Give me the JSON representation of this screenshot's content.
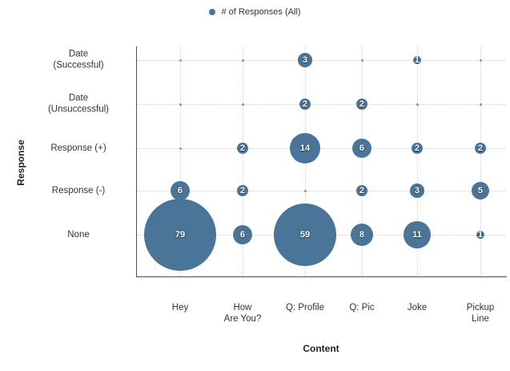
{
  "legend": {
    "label": "# of Responses (All)"
  },
  "chart_data": {
    "type": "scatter",
    "subtype": "bubble",
    "title": "",
    "xlabel": "Content",
    "ylabel": "Response",
    "size_legend": "# of Responses (All)",
    "x_categories": [
      "Hey",
      "How\nAre You?",
      "Q: Profile",
      "Q: Pic",
      "Joke",
      "Pickup\nLine"
    ],
    "y_categories": [
      "Date\n(Successful)",
      "Date\n(Unsuccessful)",
      "Response (+)",
      "Response (-)",
      "None"
    ],
    "colors": {
      "bubble": "#4a7599",
      "bubble_text": "#ffffff",
      "grid": "#d2d2d2",
      "axis": "#4d4d4d",
      "empty_dot": "#8a97a3"
    },
    "max_value": 79,
    "points": [
      {
        "x": "Q: Profile",
        "y": "Date (Successful)",
        "value": 3
      },
      {
        "x": "Joke",
        "y": "Date (Successful)",
        "value": 1
      },
      {
        "x": "Q: Profile",
        "y": "Date (Unsuccessful)",
        "value": 2
      },
      {
        "x": "Q: Pic",
        "y": "Date (Unsuccessful)",
        "value": 2
      },
      {
        "x": "How Are You?",
        "y": "Response (+)",
        "value": 2
      },
      {
        "x": "Q: Profile",
        "y": "Response (+)",
        "value": 14
      },
      {
        "x": "Q: Pic",
        "y": "Response (+)",
        "value": 6
      },
      {
        "x": "Joke",
        "y": "Response (+)",
        "value": 2
      },
      {
        "x": "Pickup Line",
        "y": "Response (+)",
        "value": 2
      },
      {
        "x": "Hey",
        "y": "Response (-)",
        "value": 6
      },
      {
        "x": "How Are You?",
        "y": "Response (-)",
        "value": 2
      },
      {
        "x": "Q: Pic",
        "y": "Response (-)",
        "value": 2
      },
      {
        "x": "Joke",
        "y": "Response (-)",
        "value": 3
      },
      {
        "x": "Pickup Line",
        "y": "Response (-)",
        "value": 5
      },
      {
        "x": "Hey",
        "y": "None",
        "value": 79
      },
      {
        "x": "How Are You?",
        "y": "None",
        "value": 6
      },
      {
        "x": "Q: Profile",
        "y": "None",
        "value": 59
      },
      {
        "x": "Q: Pic",
        "y": "None",
        "value": 8
      },
      {
        "x": "Joke",
        "y": "None",
        "value": 11
      },
      {
        "x": "Pickup Line",
        "y": "None",
        "value": 1
      }
    ]
  }
}
